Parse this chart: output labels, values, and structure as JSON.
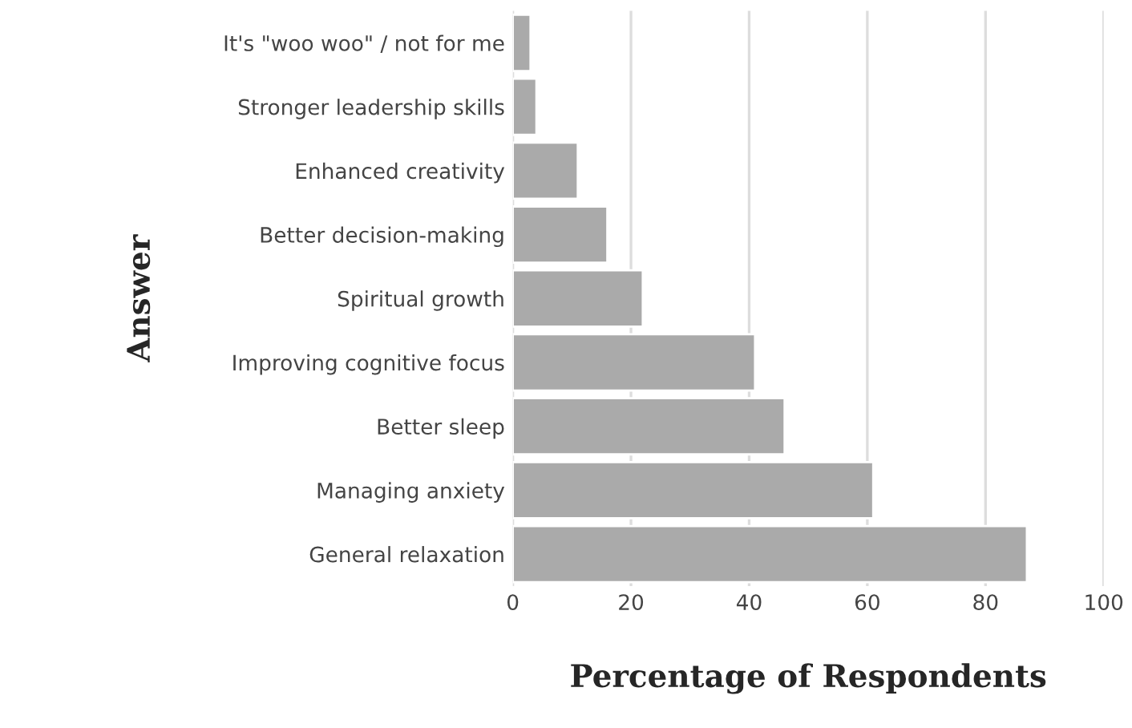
{
  "chart_data": {
    "type": "bar",
    "orientation": "horizontal",
    "xlabel": "Percentage of Respondents",
    "ylabel": "Answer",
    "categories": [
      "It's \"woo woo\" / not for me",
      "Stronger leadership skills",
      "Enhanced creativity",
      "Better decision-making",
      "Spiritual growth",
      "Improving cognitive focus",
      "Better sleep",
      "Managing anxiety",
      "General relaxation"
    ],
    "values": [
      3,
      4,
      11,
      16,
      22,
      41,
      46,
      61,
      87
    ],
    "color": "#aaaaaa",
    "xlim": [
      0,
      100
    ],
    "xticks": [
      0,
      20,
      40,
      60,
      80,
      100
    ],
    "grid": "x",
    "legend": false
  }
}
